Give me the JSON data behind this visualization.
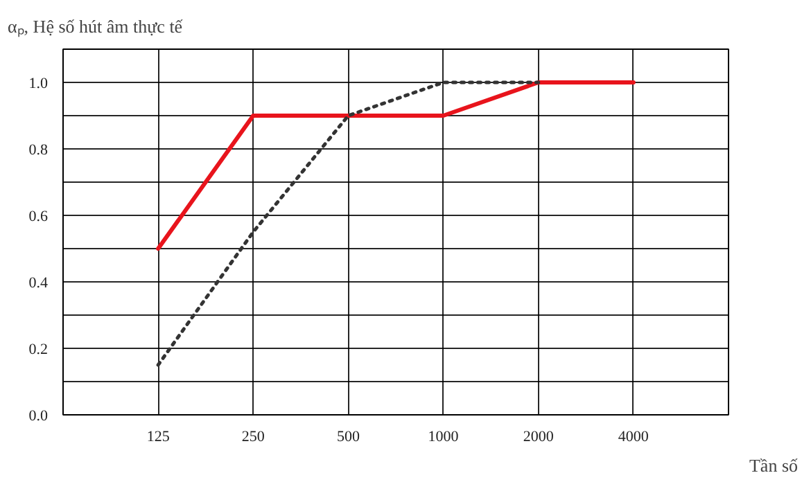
{
  "chart_data": {
    "type": "line",
    "ylabel": "αₚ, Hệ số hút âm thực tế",
    "xlabel": "Tần số",
    "log": "x",
    "x": [
      125,
      250,
      500,
      1000,
      2000,
      4000
    ],
    "xlim": [
      62.5,
      8000
    ],
    "xticks": [
      125,
      250,
      500,
      1000,
      2000,
      4000
    ],
    "ylim": [
      0,
      1.1
    ],
    "yticks": [
      {
        "value": 0,
        "label": "0.0"
      },
      {
        "value": 0.1,
        "label": null
      },
      {
        "value": 0.2,
        "label": "0.2"
      },
      {
        "value": 0.3,
        "label": null
      },
      {
        "value": 0.4,
        "label": "0.4"
      },
      {
        "value": 0.5,
        "label": null
      },
      {
        "value": 0.6,
        "label": "0.6"
      },
      {
        "value": 0.7,
        "label": null
      },
      {
        "value": 0.8,
        "label": "0.8"
      },
      {
        "value": 0.9,
        "label": null
      },
      {
        "value": 1.0,
        "label": "1.0"
      }
    ],
    "grid": true,
    "series": [
      {
        "color": "#e8141c",
        "line_style": "solid",
        "values": [
          0.5,
          0.9,
          0.9,
          0.9,
          1.0,
          1.0
        ]
      },
      {
        "color": "#333333",
        "line_style": "dotted",
        "values": [
          0.15,
          0.55,
          0.9,
          1.0,
          1.0,
          null
        ]
      }
    ]
  }
}
